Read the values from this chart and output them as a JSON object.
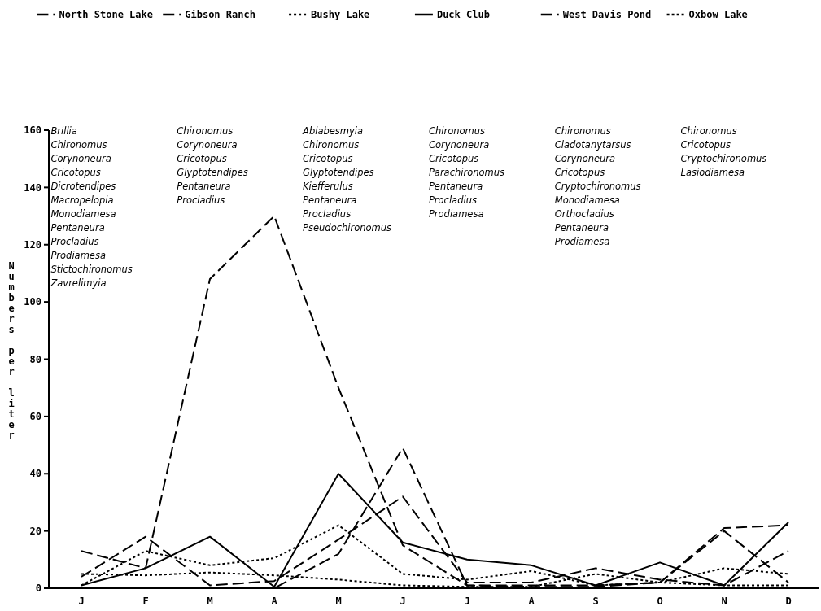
{
  "chart_data": {
    "type": "line",
    "ylabel": "Numbers per liter",
    "categories": [
      "J",
      "F",
      "M",
      "A",
      "M",
      "J",
      "J",
      "A",
      "S",
      "O",
      "N",
      "D"
    ],
    "ylim": [
      0,
      160
    ],
    "yticks": [
      0,
      20,
      40,
      60,
      80,
      100,
      120,
      140,
      160
    ],
    "grid": false,
    "legend": "top",
    "marker": "none",
    "series": [
      {
        "name": "North Stone Lake",
        "color": "#000000",
        "line_style": "dashed",
        "values": [
          13,
          7,
          108,
          130,
          70,
          15,
          1,
          0.5,
          0.5,
          2,
          20,
          2
        ]
      },
      {
        "name": "Gibson Ranch",
        "color": "#000000",
        "line_style": "dashed",
        "values": [
          4,
          18,
          1,
          2.5,
          17,
          32,
          2,
          2,
          7,
          3,
          1,
          13
        ]
      },
      {
        "name": "Bushy Lake",
        "color": "#000000",
        "line_style": "dotted",
        "values": [
          1,
          13,
          8,
          10.5,
          22,
          5,
          3,
          6,
          1,
          2,
          1,
          1
        ]
      },
      {
        "name": "Duck Club",
        "color": "#000000",
        "line_style": "solid",
        "values": [
          1,
          7,
          18,
          0.5,
          40,
          16,
          10,
          8,
          1,
          9,
          1,
          23
        ]
      },
      {
        "name": "West Davis Pond",
        "color": "#000000",
        "line_style": "dashed",
        "values": [
          0,
          0,
          0,
          0,
          12,
          49,
          1,
          1,
          1,
          2,
          21,
          22
        ]
      },
      {
        "name": "Oxbow Lake",
        "color": "#000000",
        "line_style": "dotted",
        "values": [
          5,
          4.5,
          5.5,
          4.5,
          3,
          1,
          0.5,
          0.5,
          5,
          2,
          7,
          5
        ]
      }
    ],
    "annotations": [
      "Brillia\nChironomus\nCorynoneura\nCricotopus\nDicrotendipes\nMacropelopia\nMonodiamesa\nPentaneura\nProcladius\nProdiamesa\nStictochironomus\nZavrelimyia",
      "Chironomus\nCorynoneura\nCricotopus\nGlyptotendipes\nPentaneura\nProcladius",
      "Ablabesmyia\nChironomus\nCricotopus\nGlyptotendipes\nKiefferulus\nPentaneura\nProcladius\nPseudochironomus",
      "Chironomus\nCorynoneura\nCricotopus\nParachironomus\nPentaneura\nProcladius\nProdiamesa",
      "Chironomus\nCladotanytarsus\nCorynoneura\nCricotopus\nCryptochironomus\nMonodiamesa\nOrthocladius\nPentaneura\nProdiamesa",
      "Chironomus\nCricotopus\nCryptochironomus\nLasiodiamesa"
    ]
  }
}
